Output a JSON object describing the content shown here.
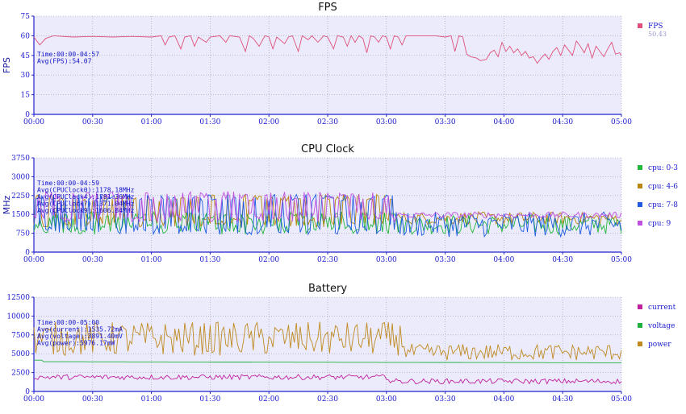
{
  "chart_data": [
    {
      "type": "line",
      "title": "FPS",
      "ylabel": "FPS",
      "xlabel": "",
      "xlim": [
        0,
        300
      ],
      "ylim": [
        0,
        75
      ],
      "yticks": [
        0,
        15,
        30,
        45,
        60,
        75
      ],
      "xtick_labels": [
        "00:00",
        "00:30",
        "01:00",
        "01:30",
        "02:00",
        "02:30",
        "03:00",
        "03:30",
        "04:00",
        "04:30",
        "05:00"
      ],
      "annotations": [
        "Time:00:00-04:57",
        "Avg(FPS):54.07"
      ],
      "series": [
        {
          "name": "FPS",
          "color": "#e0507a",
          "legend_value": "50.43",
          "points": [
            [
              0,
              59
            ],
            [
              3,
              53
            ],
            [
              6,
              58
            ],
            [
              10,
              60
            ],
            [
              20,
              59
            ],
            [
              30,
              59.5
            ],
            [
              40,
              59
            ],
            [
              50,
              59.5
            ],
            [
              60,
              59
            ],
            [
              65,
              60
            ],
            [
              67,
              53
            ],
            [
              69,
              59
            ],
            [
              72,
              60
            ],
            [
              75,
              50
            ],
            [
              77,
              59
            ],
            [
              80,
              60
            ],
            [
              82,
              52
            ],
            [
              84,
              59
            ],
            [
              88,
              55
            ],
            [
              90,
              59
            ],
            [
              95,
              60
            ],
            [
              98,
              55
            ],
            [
              100,
              60
            ],
            [
              105,
              59
            ],
            [
              108,
              48
            ],
            [
              110,
              60
            ],
            [
              112,
              58
            ],
            [
              115,
              52
            ],
            [
              118,
              60
            ],
            [
              120,
              59
            ],
            [
              122,
              50
            ],
            [
              124,
              59
            ],
            [
              128,
              54
            ],
            [
              130,
              59
            ],
            [
              132,
              60
            ],
            [
              135,
              48
            ],
            [
              137,
              60
            ],
            [
              140,
              57
            ],
            [
              142,
              60
            ],
            [
              145,
              55
            ],
            [
              148,
              60
            ],
            [
              150,
              59
            ],
            [
              153,
              50
            ],
            [
              155,
              60
            ],
            [
              158,
              59
            ],
            [
              160,
              52
            ],
            [
              162,
              60
            ],
            [
              164,
              55
            ],
            [
              166,
              60
            ],
            [
              168,
              58
            ],
            [
              170,
              47
            ],
            [
              172,
              60
            ],
            [
              174,
              59
            ],
            [
              176,
              55
            ],
            [
              178,
              60
            ],
            [
              180,
              59
            ],
            [
              182,
              50
            ],
            [
              184,
              60
            ],
            [
              186,
              59
            ],
            [
              188,
              53
            ],
            [
              190,
              60
            ],
            [
              195,
              60
            ],
            [
              200,
              60
            ],
            [
              205,
              60
            ],
            [
              210,
              59
            ],
            [
              213,
              60
            ],
            [
              215,
              48
            ],
            [
              217,
              60
            ],
            [
              219,
              59
            ],
            [
              221,
              46
            ],
            [
              223,
              44
            ],
            [
              226,
              43
            ],
            [
              228,
              41
            ],
            [
              231,
              42
            ],
            [
              233,
              47
            ],
            [
              235,
              49
            ],
            [
              237,
              44
            ],
            [
              239,
              55
            ],
            [
              241,
              48
            ],
            [
              243,
              52
            ],
            [
              245,
              47
            ],
            [
              247,
              50
            ],
            [
              249,
              45
            ],
            [
              251,
              48
            ],
            [
              253,
              43
            ],
            [
              255,
              44
            ],
            [
              257,
              39
            ],
            [
              259,
              43
            ],
            [
              261,
              46
            ],
            [
              263,
              42
            ],
            [
              265,
              48
            ],
            [
              267,
              51
            ],
            [
              269,
              45
            ],
            [
              271,
              53
            ],
            [
              273,
              49
            ],
            [
              275,
              45
            ],
            [
              277,
              56
            ],
            [
              279,
              52
            ],
            [
              281,
              47
            ],
            [
              283,
              54
            ],
            [
              285,
              43
            ],
            [
              287,
              52
            ],
            [
              289,
              48
            ],
            [
              291,
              44
            ],
            [
              293,
              50
            ],
            [
              295,
              55
            ],
            [
              297,
              46
            ],
            [
              299,
              47
            ],
            [
              300,
              45
            ]
          ]
        }
      ]
    },
    {
      "type": "line",
      "title": "CPU Clock",
      "ylabel": "MHz",
      "xlabel": "",
      "xlim": [
        0,
        300
      ],
      "ylim": [
        0,
        3750
      ],
      "yticks": [
        0,
        750,
        1500,
        2250,
        3000,
        3750
      ],
      "xtick_labels": [
        "00:00",
        "00:30",
        "01:00",
        "01:30",
        "02:00",
        "02:30",
        "03:00",
        "03:30",
        "04:00",
        "04:30",
        "05:00"
      ],
      "annotations": [
        "Time:00:00-04:59",
        "Avg(CPUClock0):1178.18MHz",
        "Avg(CPUClock4):1791.36MHz",
        "Avg(CPUClock7):1371.04MHz",
        "Avg(CPUClock9):1606.84MHz"
      ],
      "series": [
        {
          "name": "cpu: 0-3",
          "color": "#22b83a"
        },
        {
          "name": "cpu: 4-6",
          "color": "#b8860b"
        },
        {
          "name": "cpu: 7-8",
          "color": "#1e5be0"
        },
        {
          "name": "cpu: 9",
          "color": "#c050e0"
        }
      ]
    },
    {
      "type": "line",
      "title": "Battery",
      "ylabel": "",
      "xlabel": "",
      "xlim": [
        0,
        300
      ],
      "ylim": [
        0,
        12500
      ],
      "yticks": [
        0,
        2500,
        5000,
        7500,
        10000,
        12500
      ],
      "xtick_labels": [
        "00:00",
        "00:30",
        "01:00",
        "01:30",
        "02:00",
        "02:30",
        "03:00",
        "03:30",
        "04:00",
        "04:30",
        "05:00"
      ],
      "annotations": [
        "Time:00:00-05:00",
        "Avg(current):1535.72mA",
        "Avg(voltage):3891.40mV",
        "Avg(power):5976.17mW"
      ],
      "series": [
        {
          "name": "current",
          "color": "#c020a0"
        },
        {
          "name": "voltage",
          "color": "#20b040"
        },
        {
          "name": "power",
          "color": "#c08a20"
        }
      ]
    }
  ]
}
